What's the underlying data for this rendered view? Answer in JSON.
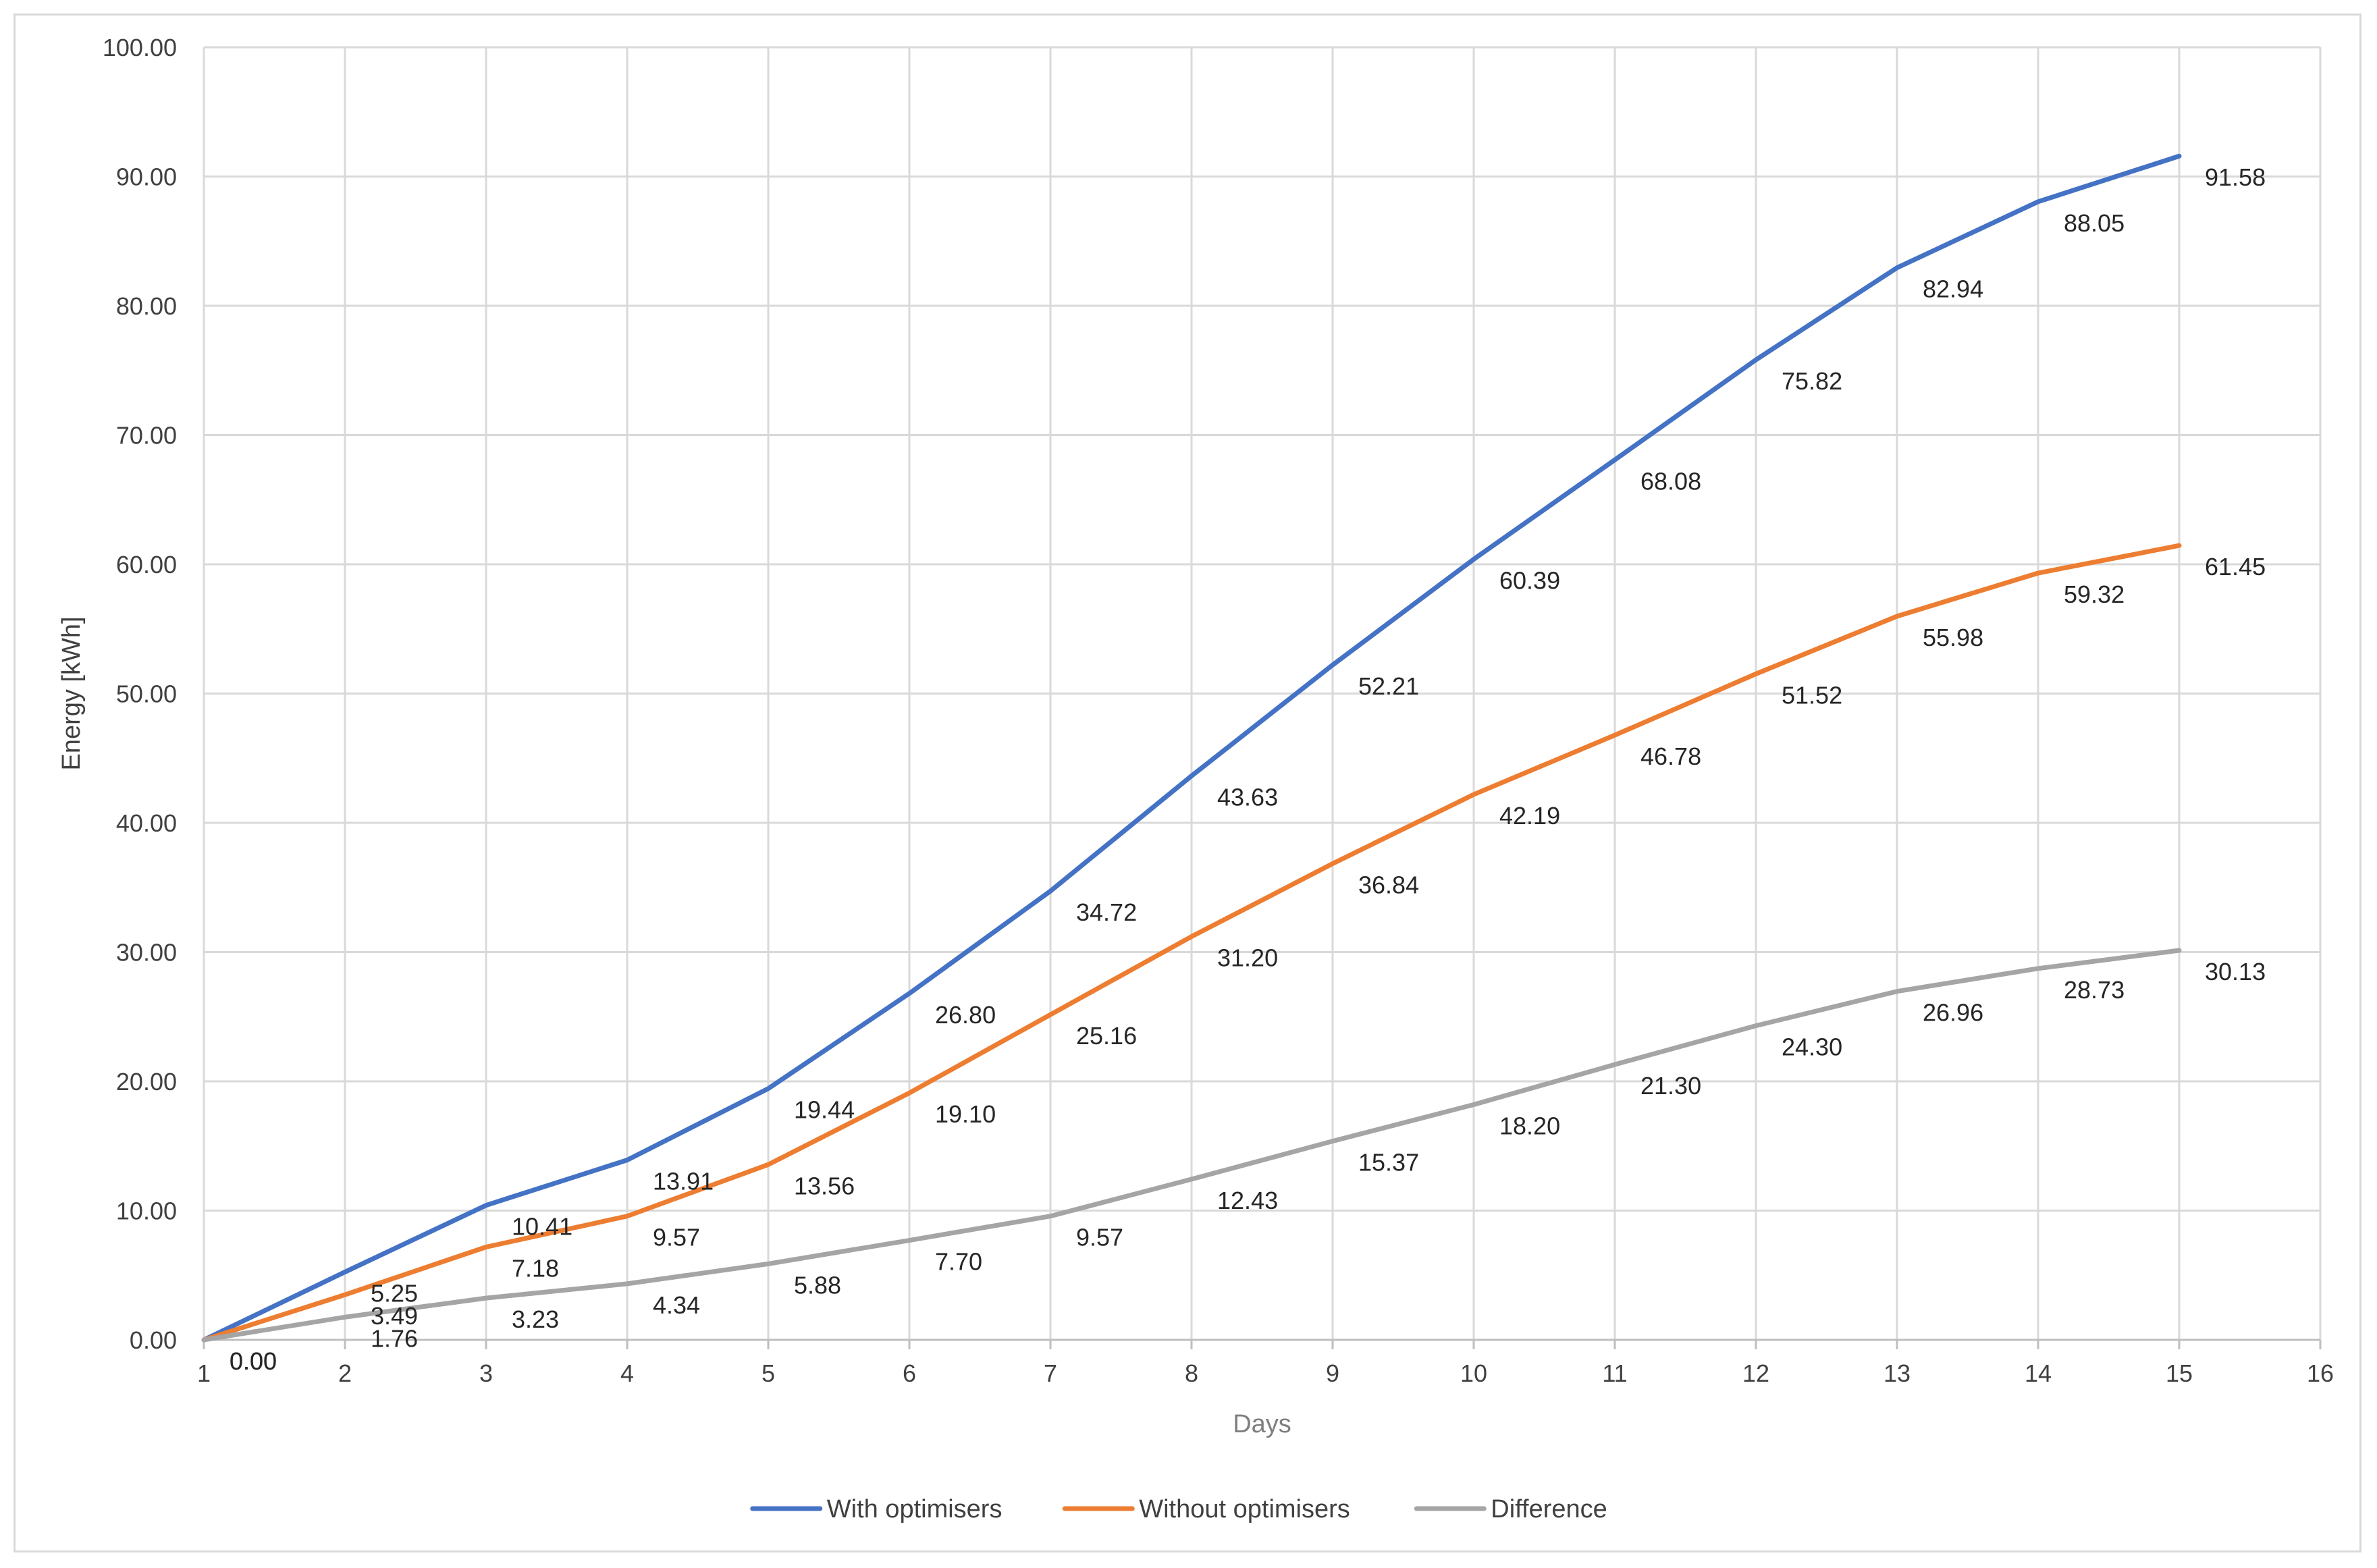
{
  "chart_data": {
    "type": "line",
    "xlabel": "Days",
    "ylabel": "Energy [kWh]",
    "xlim": [
      1,
      16
    ],
    "ylim": [
      0,
      100
    ],
    "x_ticks": [
      "1",
      "2",
      "3",
      "4",
      "5",
      "6",
      "7",
      "8",
      "9",
      "10",
      "11",
      "12",
      "13",
      "14",
      "15",
      "16"
    ],
    "y_ticks": [
      "0.00",
      "10.00",
      "20.00",
      "30.00",
      "40.00",
      "50.00",
      "60.00",
      "70.00",
      "80.00",
      "90.00",
      "100.00"
    ],
    "grid": true,
    "legend_position": "bottom",
    "x": [
      1,
      2,
      3,
      4,
      5,
      6,
      7,
      8,
      9,
      10,
      11,
      12,
      13,
      14,
      15
    ],
    "series": [
      {
        "name": "With optimisers",
        "color": "#4472c4",
        "values": [
          0.0,
          5.25,
          10.41,
          13.91,
          19.44,
          26.8,
          34.72,
          43.63,
          52.21,
          60.39,
          68.08,
          75.82,
          82.94,
          88.05,
          91.58
        ],
        "labels": [
          "0.00",
          "5.25",
          "10.41",
          "13.91",
          "19.44",
          "26.80",
          "34.72",
          "43.63",
          "52.21",
          "60.39",
          "68.08",
          "75.82",
          "82.94",
          "88.05",
          "91.58"
        ]
      },
      {
        "name": "Without optimisers",
        "color": "#ed7d31",
        "values": [
          0.0,
          3.49,
          7.18,
          9.57,
          13.56,
          19.1,
          25.16,
          31.2,
          36.84,
          42.19,
          46.78,
          51.52,
          55.98,
          59.32,
          61.45
        ],
        "labels": [
          "0.00",
          "3.49",
          "7.18",
          "9.57",
          "13.56",
          "19.10",
          "25.16",
          "31.20",
          "36.84",
          "42.19",
          "46.78",
          "51.52",
          "55.98",
          "59.32",
          "61.45"
        ]
      },
      {
        "name": "Difference",
        "color": "#a5a5a5",
        "values": [
          0.0,
          1.76,
          3.23,
          4.34,
          5.88,
          7.7,
          9.57,
          12.43,
          15.37,
          18.2,
          21.3,
          24.3,
          26.96,
          28.73,
          30.13
        ],
        "labels": [
          "0.00",
          "1.76",
          "3.23",
          "4.34",
          "5.88",
          "7.70",
          "9.57",
          "12.43",
          "15.37",
          "18.20",
          "21.30",
          "24.30",
          "26.96",
          "28.73",
          "30.13"
        ]
      }
    ]
  }
}
